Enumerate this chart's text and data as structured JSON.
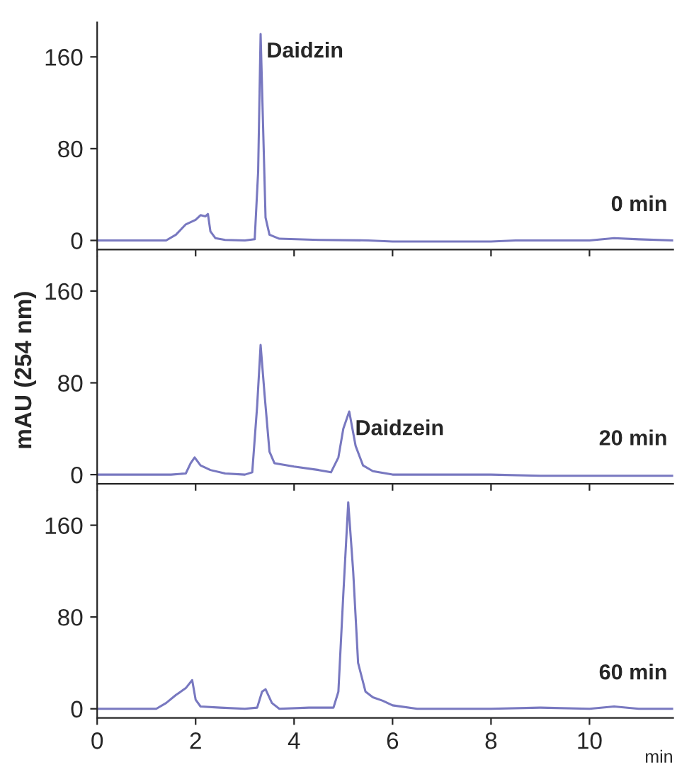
{
  "chart_data": [
    {
      "type": "line",
      "x": [
        0,
        1.4,
        1.6,
        1.8,
        2.0,
        2.1,
        2.2,
        2.25,
        2.3,
        2.4,
        2.6,
        3.0,
        3.2,
        3.27,
        3.32,
        3.37,
        3.42,
        3.5,
        3.7,
        4.5,
        5.5,
        6,
        8,
        8.5,
        10,
        10.5,
        11,
        11.7
      ],
      "series": [
        {
          "color": "#7878c0",
          "values": [
            0,
            0,
            5,
            14,
            18,
            22,
            21,
            23,
            8,
            2,
            0.5,
            0,
            1,
            60,
            180,
            100,
            20,
            5,
            1.5,
            0.5,
            0,
            -1,
            -1,
            0,
            0,
            2,
            1,
            0
          ]
        }
      ],
      "xlim": [
        0,
        11.7
      ],
      "ylim": [
        -8,
        190
      ],
      "xticks": [
        0,
        2,
        4,
        6,
        8,
        10
      ],
      "yticks": [
        0,
        80,
        160
      ],
      "tick_labels": "y",
      "grid": false,
      "legend": false,
      "annotations": [
        {
          "text": "Daidzin",
          "x": 3.32,
          "y": 180
        },
        "0 min"
      ]
    },
    {
      "type": "line",
      "x": [
        0,
        1.5,
        1.8,
        1.9,
        1.98,
        2.1,
        2.3,
        2.6,
        3.0,
        3.15,
        3.25,
        3.32,
        3.4,
        3.5,
        3.6,
        4.0,
        4.5,
        4.75,
        4.9,
        5.0,
        5.12,
        5.25,
        5.4,
        5.6,
        6,
        8,
        9,
        11.7
      ],
      "series": [
        {
          "color": "#7878c0",
          "values": [
            0,
            0,
            1,
            10,
            15,
            8,
            4,
            1,
            0,
            2,
            60,
            113,
            70,
            20,
            10,
            7,
            4,
            2,
            15,
            40,
            55,
            25,
            8,
            3,
            0,
            0,
            -1,
            -1
          ]
        }
      ],
      "xlim": [
        0,
        11.7
      ],
      "ylim": [
        -8,
        190
      ],
      "xticks": [
        0,
        2,
        4,
        6,
        8,
        10
      ],
      "yticks": [
        0,
        80,
        160
      ],
      "tick_labels": "y",
      "grid": false,
      "legend": false,
      "ylabel": "mAU (254 nm)",
      "annotations": [
        {
          "text": "Daidzein",
          "x": 5.12,
          "y": 55
        },
        "20 min"
      ]
    },
    {
      "type": "line",
      "x": [
        0,
        1.2,
        1.4,
        1.6,
        1.8,
        1.93,
        2.0,
        2.1,
        2.5,
        3.0,
        3.25,
        3.35,
        3.42,
        3.55,
        3.7,
        4.3,
        4.8,
        4.9,
        5.0,
        5.1,
        5.2,
        5.3,
        5.45,
        5.6,
        5.8,
        6.0,
        6.5,
        8,
        9,
        10,
        10.5,
        11,
        11.7
      ],
      "series": [
        {
          "color": "#7878c0",
          "values": [
            0,
            0,
            5,
            12,
            18,
            25,
            8,
            2,
            1,
            0,
            1,
            15,
            17,
            5,
            0,
            1,
            1,
            15,
            100,
            180,
            120,
            40,
            15,
            10,
            7,
            3,
            0,
            0,
            1,
            0,
            2,
            0,
            0
          ]
        }
      ],
      "xlim": [
        0,
        11.7
      ],
      "ylim": [
        -8,
        190
      ],
      "xticks": [
        0,
        2,
        4,
        6,
        8,
        10
      ],
      "yticks": [
        0,
        80,
        160
      ],
      "grid": false,
      "legend": false,
      "xlabel": "min",
      "annotations": [
        "60 min"
      ]
    }
  ]
}
